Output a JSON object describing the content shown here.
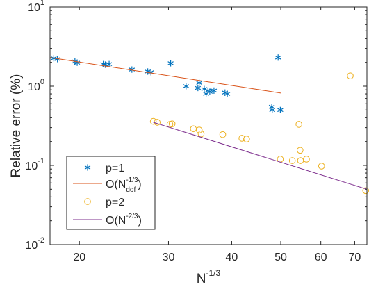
{
  "chart_data": {
    "type": "scatter",
    "title": "",
    "xlabel": "N",
    "xlabel_sup": "-1/3",
    "ylabel": "Relative error (%)",
    "xscale": "log",
    "yscale": "log",
    "xlim": [
      17.5,
      74
    ],
    "ylim": [
      0.01,
      10
    ],
    "x_ticks": [
      20,
      30,
      40,
      50,
      60,
      70
    ],
    "x_tick_labels": [
      "20",
      "30",
      "40",
      "50",
      "60",
      "70"
    ],
    "y_ticks": [
      {
        "value": 0.01,
        "base": "10",
        "exp": "-2"
      },
      {
        "value": 0.1,
        "base": "10",
        "exp": "-1"
      },
      {
        "value": 1,
        "base": "10",
        "exp": "0"
      },
      {
        "value": 10,
        "base": "10",
        "exp": "1"
      }
    ],
    "grid": false,
    "legend_position": "bottom-left",
    "series": [
      {
        "name": "p=1",
        "kind": "markers",
        "marker": "asterisk",
        "color": "#0072BD",
        "points": [
          [
            17.8,
            2.25
          ],
          [
            18.1,
            2.2
          ],
          [
            19.6,
            2.05
          ],
          [
            19.8,
            1.98
          ],
          [
            22.3,
            1.9
          ],
          [
            22.5,
            1.87
          ],
          [
            22.9,
            1.9
          ],
          [
            25.4,
            1.62
          ],
          [
            27.3,
            1.53
          ],
          [
            27.7,
            1.5
          ],
          [
            30.3,
            1.95
          ],
          [
            32.5,
            1.0
          ],
          [
            34.3,
            0.95
          ],
          [
            34.5,
            1.1
          ],
          [
            35.3,
            0.92
          ],
          [
            35.6,
            0.8
          ],
          [
            35.9,
            0.88
          ],
          [
            36.2,
            0.85
          ],
          [
            36.9,
            0.88
          ],
          [
            38.8,
            0.83
          ],
          [
            39.2,
            0.8
          ],
          [
            48.0,
            0.55
          ],
          [
            48.1,
            0.5
          ],
          [
            49.4,
            2.3
          ],
          [
            49.9,
            0.5
          ]
        ]
      },
      {
        "name": "O(N",
        "name_sup": "-1/3",
        "name_sub": "dof",
        "name_end": ")",
        "kind": "line",
        "color": "#D95319",
        "points": [
          [
            17.5,
            2.3
          ],
          [
            50.0,
            0.82
          ]
        ]
      },
      {
        "name": "p=2",
        "kind": "markers",
        "marker": "circle",
        "color": "#EDB120",
        "points": [
          [
            28.0,
            0.36
          ],
          [
            28.5,
            0.35
          ],
          [
            30.2,
            0.33
          ],
          [
            30.5,
            0.335
          ],
          [
            33.6,
            0.29
          ],
          [
            34.5,
            0.28
          ],
          [
            34.8,
            0.25
          ],
          [
            38.4,
            0.245
          ],
          [
            41.9,
            0.22
          ],
          [
            42.8,
            0.215
          ],
          [
            49.9,
            0.12
          ],
          [
            52.7,
            0.115
          ],
          [
            54.3,
            0.33
          ],
          [
            54.6,
            0.155
          ],
          [
            54.7,
            0.115
          ],
          [
            56.2,
            0.12
          ],
          [
            60.2,
            0.098
          ],
          [
            68.6,
            1.35
          ],
          [
            73.6,
            0.048
          ]
        ]
      },
      {
        "name": "O(N",
        "name_sup": "-2/3",
        "name_end": ")",
        "kind": "line",
        "color": "#7E2F8E",
        "points": [
          [
            28.0,
            0.35
          ],
          [
            74.0,
            0.05
          ]
        ]
      }
    ]
  }
}
